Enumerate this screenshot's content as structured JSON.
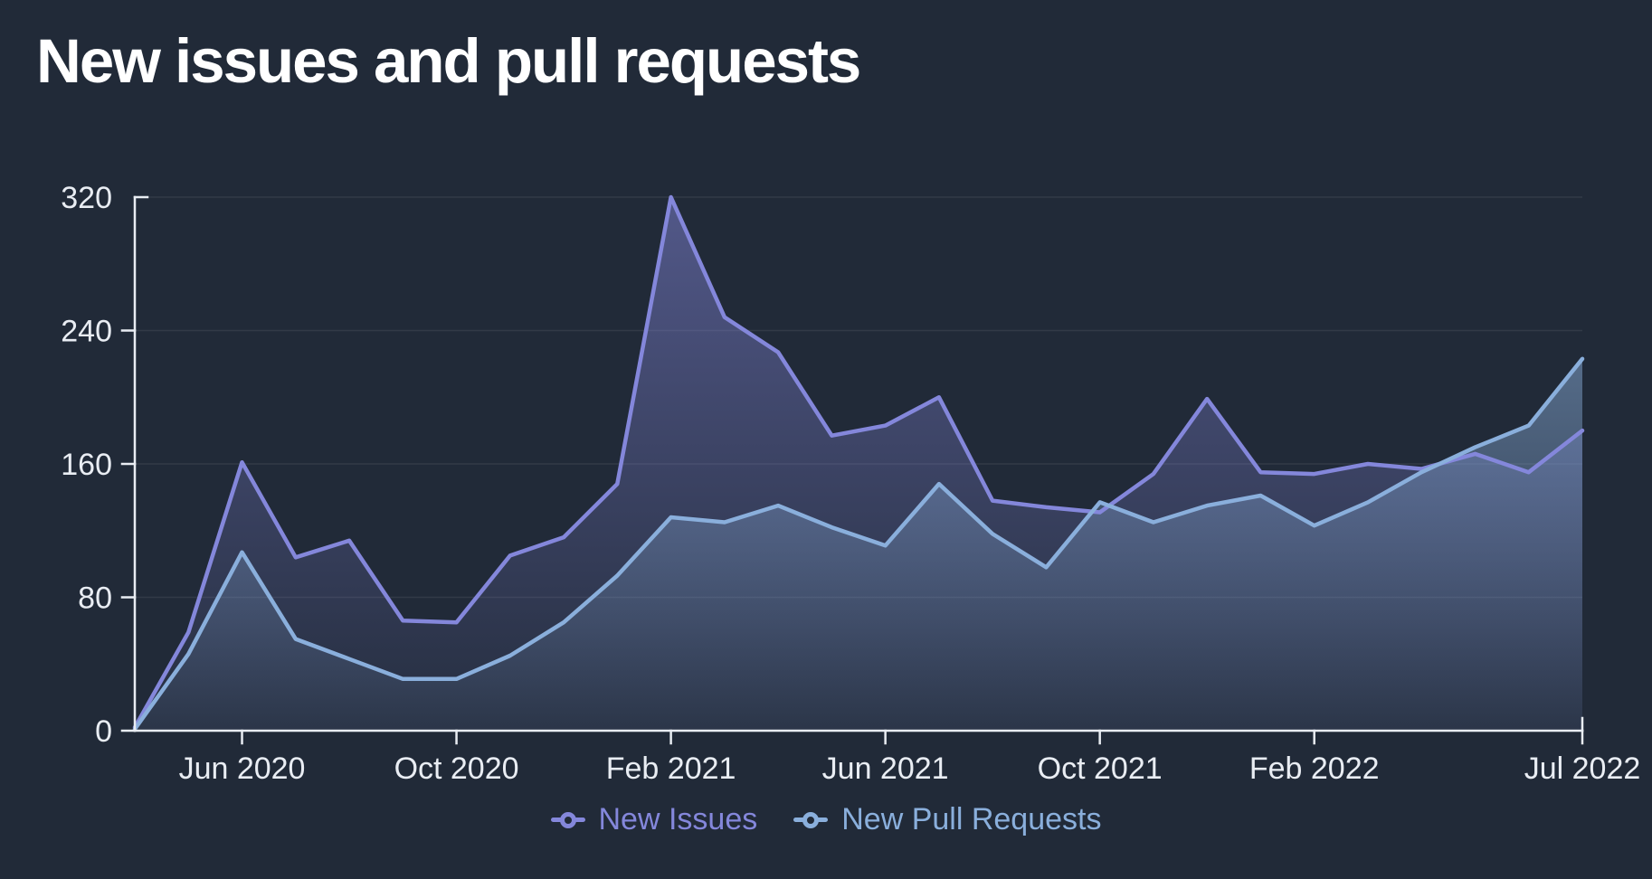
{
  "title": "New issues and pull requests",
  "colors": {
    "background": "#212a38",
    "title": "#ffffff",
    "axis": "#e9edf3",
    "grid": "#ffffff",
    "issues": "#8487db",
    "pull_requests": "#8aafdc"
  },
  "legend": {
    "items": [
      {
        "label": "New Issues",
        "color": "#8487db"
      },
      {
        "label": "New Pull Requests",
        "color": "#8aafdc"
      }
    ]
  },
  "chart_data": {
    "type": "area",
    "title": "New issues and pull requests",
    "xlabel": "",
    "ylabel": "",
    "ylim": [
      0,
      320
    ],
    "y_ticks": [
      0,
      80,
      160,
      240,
      320
    ],
    "grid": "horizontal",
    "legend_position": "bottom-center",
    "x": [
      "Apr 2020",
      "May 2020",
      "Jun 2020",
      "Jul 2020",
      "Aug 2020",
      "Sep 2020",
      "Oct 2020",
      "Nov 2020",
      "Dec 2020",
      "Jan 2021",
      "Feb 2021",
      "Mar 2021",
      "Apr 2021",
      "May 2021",
      "Jun 2021",
      "Jul 2021",
      "Aug 2021",
      "Sep 2021",
      "Oct 2021",
      "Nov 2021",
      "Dec 2021",
      "Jan 2022",
      "Feb 2022",
      "Mar 2022",
      "Apr 2022",
      "May 2022",
      "Jun 2022",
      "Jul 2022"
    ],
    "x_tick_labels": [
      {
        "index": 2,
        "label": "Jun 2020"
      },
      {
        "index": 6,
        "label": "Oct 2020"
      },
      {
        "index": 10,
        "label": "Feb 2021"
      },
      {
        "index": 14,
        "label": "Jun 2021"
      },
      {
        "index": 18,
        "label": "Oct 2021"
      },
      {
        "index": 22,
        "label": "Feb 2022"
      },
      {
        "index": 27,
        "label": "Jul 2022"
      }
    ],
    "series": [
      {
        "name": "New Issues",
        "color": "#8487db",
        "values": [
          2,
          59,
          161,
          104,
          114,
          66,
          65,
          105,
          116,
          148,
          320,
          248,
          227,
          177,
          183,
          200,
          138,
          134,
          131,
          154,
          199,
          155,
          154,
          160,
          157,
          166,
          155,
          180
        ]
      },
      {
        "name": "New Pull Requests",
        "color": "#8aafdc",
        "values": [
          1,
          46,
          107,
          55,
          43,
          31,
          31,
          45,
          65,
          93,
          128,
          125,
          135,
          122,
          111,
          148,
          118,
          98,
          137,
          125,
          135,
          141,
          123,
          137,
          155,
          170,
          183,
          223
        ]
      }
    ]
  }
}
